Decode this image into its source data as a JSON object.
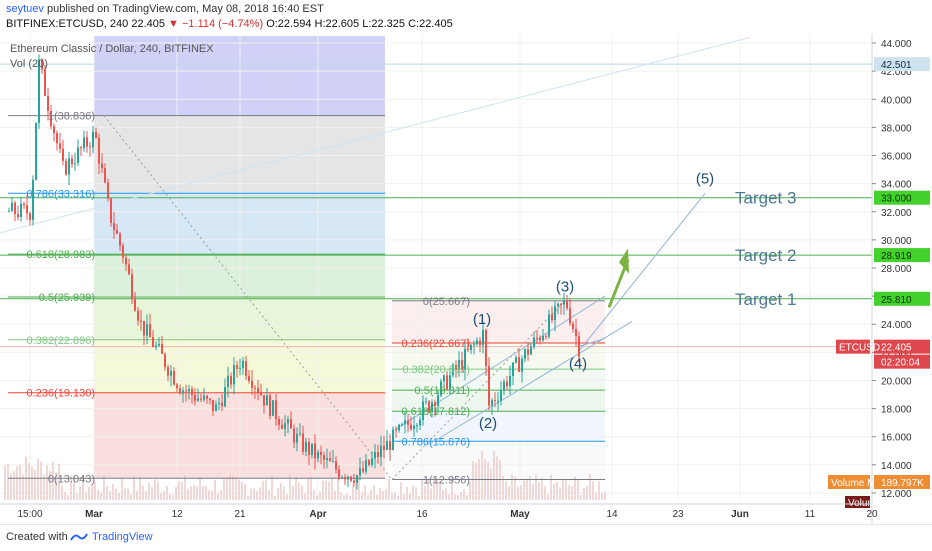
{
  "header": {
    "user": "seytuev",
    "published": "published on TradingView.com, May 08, 2018 16:40 EST",
    "symbol_line": "BITFINEX:ETCUSD, 240",
    "last": "22.405",
    "change": "▼ −1.114 (−4.74%)",
    "ohlc": "O:22.594 H:22.605 L:22.325 C:22.405"
  },
  "chart_data": {
    "type": "candlestick",
    "title": "Ethereum Classic / Dollar, 240, BITFINEX",
    "indicator": "Vol (20)",
    "ylim": [
      11.5,
      44.5
    ],
    "y_ticks": [
      "44.000",
      "42.000",
      "40.000",
      "38.000",
      "36.000",
      "34.000",
      "32.000",
      "30.000",
      "28.000",
      "26.000",
      "24.000",
      "22.000",
      "20.000",
      "18.000",
      "16.000",
      "14.000",
      "12.000"
    ],
    "x_ticks": [
      "15:00",
      "Mar",
      "12",
      "21",
      "Apr",
      "16",
      "May",
      "14",
      "23",
      "Jun",
      "11",
      "20"
    ],
    "price_path": [
      [
        "15:00",
        32.0
      ],
      [
        "Feb 26",
        42.5
      ],
      [
        "Feb 28",
        35.0
      ],
      [
        "Mar",
        37.5
      ],
      [
        "Mar 4",
        32.0
      ],
      [
        "Mar 7",
        29.0
      ],
      [
        "Mar 10",
        24.0
      ],
      [
        "Mar 14",
        19.5
      ],
      [
        "Mar 18",
        18.0
      ],
      [
        "Mar 21",
        21.5
      ],
      [
        "Mar 25",
        18.5
      ],
      [
        "Mar 30",
        15.5
      ],
      [
        "Apr",
        14.5
      ],
      [
        "Apr 6",
        13.5
      ],
      [
        "Apr 9",
        13.2
      ],
      [
        "Apr 12",
        15.0
      ],
      [
        "Apr 18",
        18.5
      ],
      [
        "Apr 24",
        23.3
      ],
      [
        "Apr 26",
        18.2
      ],
      [
        "May",
        21.5
      ],
      [
        "May 6",
        25.6
      ],
      [
        "May 8",
        22.4
      ]
    ],
    "fib_retracement_left": {
      "levels": [
        {
          "label": "1(38.836)",
          "price": 38.836,
          "color": "#787b86"
        },
        {
          "label": "0.786(33.316)",
          "price": 33.316,
          "color": "#2196f3"
        },
        {
          "label": "0.618(28.983)",
          "price": 28.983,
          "color": "#4caf50"
        },
        {
          "label": "0.5(25.939)",
          "price": 25.939,
          "color": "#4caf50"
        },
        {
          "label": "0.382(22.896)",
          "price": 22.896,
          "color": "#81c784"
        },
        {
          "label": "0.236(19.130)",
          "price": 19.13,
          "color": "#f44336"
        },
        {
          "label": "0(13.043)",
          "price": 13.043,
          "color": "#787b86"
        }
      ]
    },
    "fib_retracement_right": {
      "levels": [
        {
          "label": "0(25.667)",
          "price": 25.667,
          "color": "#787b86"
        },
        {
          "label": "0.236(22.667)",
          "price": 22.667,
          "color": "#f44336"
        },
        {
          "label": "0.382(20.811)",
          "price": 20.811,
          "color": "#81c784"
        },
        {
          "label": "0.5(19.311)",
          "price": 19.311,
          "color": "#4caf50"
        },
        {
          "label": "0.618(17.812)",
          "price": 17.812,
          "color": "#4caf50"
        },
        {
          "label": "0.786(15.676)",
          "price": 15.676,
          "color": "#2196f3"
        },
        {
          "label": "1(12.956)",
          "price": 12.956,
          "color": "#787b86"
        }
      ]
    },
    "wave_labels": [
      {
        "label": "(1)",
        "x": "Apr 24",
        "price": 23.3
      },
      {
        "label": "(2)",
        "x": "Apr 26",
        "price": 18.2
      },
      {
        "label": "(3)",
        "x": "May 6",
        "price": 25.6
      },
      {
        "label": "(4)",
        "x": "May 8",
        "price": 22.4
      },
      {
        "label": "(5)",
        "x": "May 27",
        "price": 33.3
      }
    ],
    "targets": [
      {
        "label": "Target 3",
        "price": 33.0,
        "axis_label": "33.000"
      },
      {
        "label": "Target 2",
        "price": 28.919,
        "axis_label": "28.919"
      },
      {
        "label": "Target 1",
        "price": 25.81,
        "axis_label": "25.810"
      }
    ],
    "price_labels": {
      "high": "42.501",
      "symbol": "ETCUSD",
      "last": "22.405",
      "countdown": "02:20:04",
      "volume_ma_label": "Volume MA",
      "volume_ma": "189.797K",
      "volume_label": "Volume"
    }
  },
  "footer": {
    "created": "Created with",
    "brand": "TradingView"
  }
}
